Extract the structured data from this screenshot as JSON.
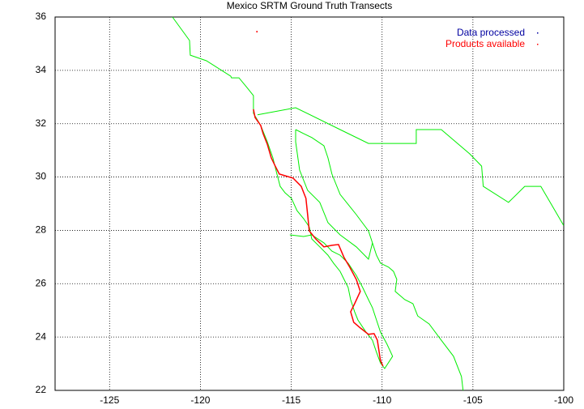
{
  "chart_data": {
    "type": "line",
    "title": "Mexico SRTM Ground Truth Transects",
    "xlim": [
      -128,
      -100
    ],
    "ylim": [
      22,
      36
    ],
    "xticks": [
      -125,
      -120,
      -115,
      -110,
      -105,
      -100
    ],
    "yticks": [
      22,
      24,
      26,
      28,
      30,
      32,
      34,
      36
    ],
    "grid": true,
    "legend": "upper right",
    "series": [
      {
        "color": "#00ee00",
        "x": [
          -121.54,
          -120.6,
          -120.56,
          -119.67,
          -118.33,
          -118.29,
          -117.88,
          -117.44,
          -117.08,
          -117.08,
          -116.68,
          -116.32,
          -116.01,
          -115.79,
          -115.61,
          -115.34,
          -114.99,
          -114.68,
          -114.32,
          -114.01,
          -113.87,
          -113.43,
          -112.98,
          -112.67,
          -112.31,
          -112.09,
          -111.87,
          -111.73,
          -111.51,
          -111.33,
          -110.89,
          -110.53,
          -110.31,
          -110.09,
          -109.86,
          -109.42,
          -109.73,
          -110.09,
          -110.31,
          -110.53,
          -110.75,
          -111.07,
          -111.42,
          -111.87,
          -112.31,
          -112.76,
          -113.2,
          -113.87,
          -114.32,
          -115.08,
          null,
          -116.86,
          -114.76,
          -112.31,
          -110.75,
          -108.12,
          -108.12,
          -106.74,
          -105.18,
          -104.52,
          -104.43,
          -103.04,
          -102.15,
          -101.26,
          -100.01,
          null,
          -114.76,
          -114.32,
          -113.87,
          -113.2,
          -112.98,
          -112.76,
          -112.31,
          -111.42,
          -110.75,
          -110.53,
          -110.31,
          -110.09,
          -109.64,
          -109.37,
          -109.19,
          -109.28,
          -108.75,
          -108.3,
          -108.04,
          -107.41,
          -106.74,
          -106.07,
          -105.63,
          -105.54,
          null,
          -114.76,
          -114.76,
          -114.54,
          -114.1,
          -113.43,
          -112.98,
          -112.31,
          -111.42,
          -110.75,
          -110.53
        ],
        "values": [
          36.0,
          35.12,
          34.57,
          34.36,
          33.78,
          33.72,
          33.72,
          33.36,
          33.05,
          32.39,
          31.93,
          31.32,
          30.72,
          30.11,
          29.65,
          29.41,
          29.2,
          28.74,
          28.44,
          28.13,
          27.68,
          27.38,
          27.07,
          26.77,
          26.46,
          26.16,
          25.86,
          25.4,
          24.95,
          24.64,
          24.19,
          23.88,
          23.43,
          23.03,
          22.82,
          23.28,
          23.73,
          24.19,
          24.64,
          25.1,
          25.4,
          25.86,
          26.31,
          26.77,
          27.07,
          27.22,
          27.53,
          27.83,
          27.77,
          27.83,
          null,
          32.33,
          32.6,
          31.78,
          31.26,
          31.26,
          31.78,
          31.78,
          30.87,
          30.41,
          29.65,
          29.05,
          29.65,
          29.65,
          28.19,
          null,
          31.78,
          31.63,
          31.48,
          31.17,
          30.72,
          30.11,
          29.35,
          28.59,
          27.98,
          27.53,
          27.07,
          26.77,
          26.62,
          26.46,
          26.16,
          25.71,
          25.4,
          25.25,
          24.79,
          24.49,
          23.88,
          23.28,
          22.52,
          22.0,
          null,
          31.78,
          31.32,
          30.26,
          29.5,
          29.05,
          28.29,
          27.83,
          27.38,
          26.92,
          27.53
        ]
      },
      {
        "name": "Data processed",
        "color": "#0000a0",
        "x": [],
        "values": []
      },
      {
        "name": "Products available",
        "color": "#ff0000",
        "x": [
          -117.08,
          -116.99,
          -116.68,
          -116.55,
          -116.32,
          -116.1,
          -115.88,
          -115.66,
          -115.21,
          -114.9,
          -114.45,
          -114.19,
          -114.1,
          -114.01,
          -113.65,
          -113.2,
          -112.76,
          -112.4,
          -112.09,
          -111.78,
          -111.42,
          -111.2,
          -111.51,
          -111.73,
          -111.56,
          -111.2,
          -110.75,
          -110.44,
          -110.26,
          -110.09,
          -109.95,
          null,
          -116.9
        ],
        "values": [
          32.54,
          32.23,
          31.93,
          31.63,
          31.23,
          30.72,
          30.41,
          30.11,
          30.02,
          29.96,
          29.65,
          29.2,
          28.59,
          27.98,
          27.68,
          27.38,
          27.44,
          27.47,
          26.98,
          26.62,
          26.16,
          25.71,
          25.25,
          24.95,
          24.55,
          24.34,
          24.1,
          24.13,
          23.88,
          23.12,
          22.91,
          null,
          35.45
        ]
      }
    ]
  }
}
